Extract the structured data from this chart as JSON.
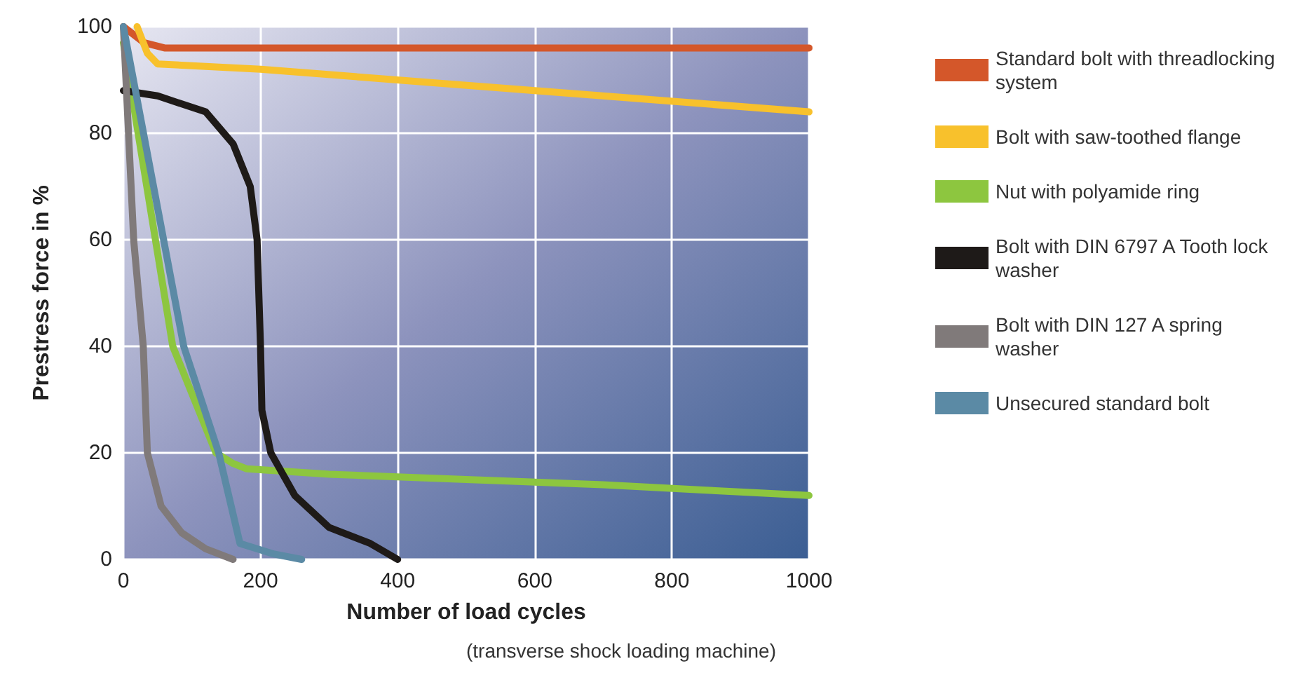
{
  "chart_data": {
    "type": "line",
    "xlabel": "Number of load cycles",
    "ylabel": "Prestress force in %",
    "annotations": [
      "(transverse shock loading machine)"
    ],
    "xlim": [
      0,
      1000
    ],
    "xticks": [
      0,
      200,
      400,
      600,
      800,
      1000
    ],
    "ylim": [
      0,
      100
    ],
    "yticks": [
      0,
      20,
      40,
      60,
      80,
      100
    ],
    "grid": true,
    "legend": "right",
    "marker": "none",
    "line_style": "solid",
    "series": [
      {
        "name": "Standard bolt with threadlocking system",
        "color": "#d4572a",
        "x": [
          0,
          30,
          60,
          200,
          1000
        ],
        "values": [
          100,
          97,
          96,
          96,
          96
        ]
      },
      {
        "name": "Bolt with saw-toothed flange",
        "color": "#f8c12c",
        "x": [
          20,
          35,
          50,
          200,
          600,
          1000
        ],
        "values": [
          100,
          95,
          93,
          92,
          88,
          84
        ]
      },
      {
        "name": "Nut with polyamide ring",
        "color": "#8dc63f",
        "x": [
          0,
          72,
          135,
          160,
          180,
          300,
          500,
          700,
          850,
          1000
        ],
        "values": [
          97,
          40,
          20,
          18,
          17,
          16,
          15,
          14,
          13,
          12
        ]
      },
      {
        "name": "Bolt with DIN 6797 A Tooth lock washer",
        "color": "#1e1a18",
        "x": [
          0,
          50,
          120,
          160,
          185,
          195,
          200,
          202,
          215,
          250,
          300,
          360,
          400
        ],
        "values": [
          88,
          87,
          84,
          78,
          70,
          60,
          40,
          28,
          20,
          12,
          6,
          3,
          0
        ]
      },
      {
        "name": "Bolt with DIN 127 A spring washer",
        "color": "#807a7a",
        "x": [
          0,
          15,
          29,
          35,
          55,
          85,
          120,
          160
        ],
        "values": [
          100,
          60,
          40,
          20,
          10,
          5,
          2,
          0
        ]
      },
      {
        "name": "Unsecured standard bolt",
        "color": "#5b8aa5",
        "x": [
          0,
          88,
          139,
          170,
          220,
          260
        ],
        "values": [
          100,
          40,
          20,
          3,
          1,
          0
        ]
      }
    ]
  }
}
